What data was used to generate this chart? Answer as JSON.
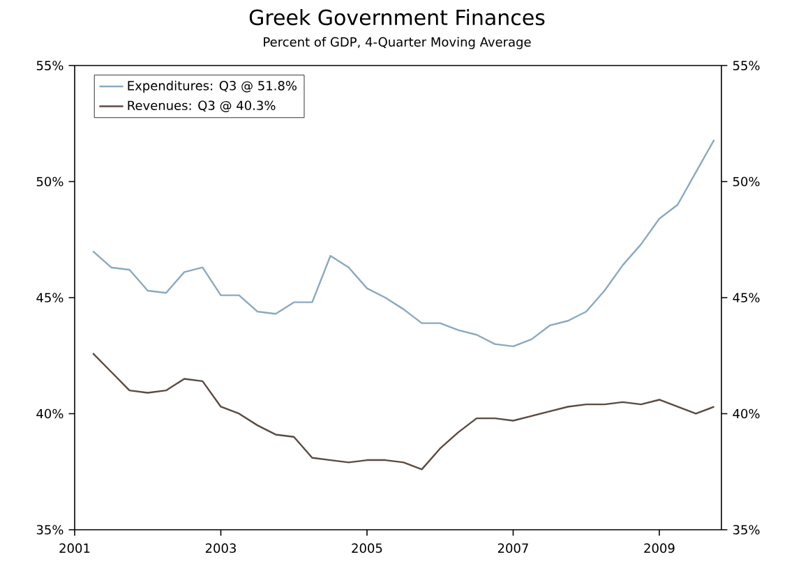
{
  "chart_data": {
    "type": "line",
    "title": "Greek Government Finances",
    "subtitle": "Percent of GDP, 4-Quarter Moving Average",
    "x": [
      2001.25,
      2001.5,
      2001.75,
      2002.0,
      2002.25,
      2002.5,
      2002.75,
      2003.0,
      2003.25,
      2003.5,
      2003.75,
      2004.0,
      2004.25,
      2004.5,
      2004.75,
      2005.0,
      2005.25,
      2005.5,
      2005.75,
      2006.0,
      2006.25,
      2006.5,
      2006.75,
      2007.0,
      2007.25,
      2007.5,
      2007.75,
      2008.0,
      2008.25,
      2008.5,
      2008.75,
      2009.0,
      2009.25,
      2009.5,
      2009.75
    ],
    "series": [
      {
        "name": "Expenditures: Q3 @ 51.8%",
        "color": "#8aa9bf",
        "values": [
          47.0,
          46.3,
          46.2,
          45.3,
          45.2,
          46.1,
          46.3,
          45.1,
          45.1,
          44.4,
          44.3,
          44.8,
          44.8,
          46.8,
          46.3,
          45.4,
          45.0,
          44.5,
          43.9,
          43.9,
          43.6,
          43.4,
          43.0,
          42.9,
          43.2,
          43.8,
          44.0,
          44.4,
          45.3,
          46.4,
          47.3,
          48.4,
          49.0,
          50.4,
          51.8
        ]
      },
      {
        "name": "Revenues: Q3 @ 40.3%",
        "color": "#5a4a40",
        "values": [
          42.6,
          41.8,
          41.0,
          40.9,
          41.0,
          41.5,
          41.4,
          40.3,
          40.0,
          39.5,
          39.1,
          39.0,
          38.1,
          38.0,
          37.9,
          38.0,
          38.0,
          37.9,
          37.6,
          38.5,
          39.2,
          39.8,
          39.8,
          39.7,
          39.9,
          40.1,
          40.3,
          40.4,
          40.4,
          40.5,
          40.4,
          40.6,
          40.3,
          40.0,
          40.3
        ]
      }
    ],
    "xlim": [
      2001,
      2009.85
    ],
    "xticks": [
      2001,
      2003,
      2005,
      2007,
      2009
    ],
    "ylim": [
      35,
      55
    ],
    "yticks": [
      {
        "value": 35,
        "label": "35%"
      },
      {
        "value": 40,
        "label": "40%"
      },
      {
        "value": 45,
        "label": "45%"
      },
      {
        "value": 50,
        "label": "50%"
      },
      {
        "value": 55,
        "label": "55%"
      }
    ],
    "y2lim": [
      35,
      55
    ],
    "y2ticks": [
      {
        "value": 35,
        "label": "35%"
      },
      {
        "value": 40,
        "label": "40%"
      },
      {
        "value": 45,
        "label": "45%"
      },
      {
        "value": 50,
        "label": "50%"
      },
      {
        "value": 55,
        "label": "55%"
      }
    ],
    "legend": "top left",
    "grid": false,
    "marker": "none",
    "line_style": "solid"
  }
}
